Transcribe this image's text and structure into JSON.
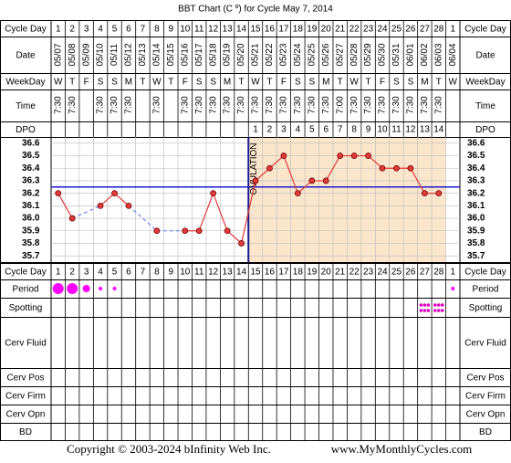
{
  "title": "BBT Chart (C º) for Cycle May 7, 2014",
  "row_labels": {
    "cycle_day": "Cycle Day",
    "date": "Date",
    "weekday": "WeekDay",
    "time": "Time",
    "dpo": "DPO",
    "period": "Period",
    "spotting": "Spotting",
    "cerv_fluid": "Cerv Fluid",
    "cerv_pos": "Cerv Pos",
    "cerv_firm": "Cerv Firm",
    "cerv_opn": "Cerv Opn",
    "bd": "BD"
  },
  "chart_data": {
    "type": "line",
    "categories": [
      1,
      2,
      3,
      4,
      5,
      6,
      7,
      8,
      9,
      10,
      11,
      12,
      13,
      14,
      15,
      16,
      17,
      18,
      19,
      20,
      21,
      22,
      23,
      24,
      25,
      26,
      27,
      28,
      1
    ],
    "dates": [
      "05/07",
      "05/08",
      "05/09",
      "05/10",
      "05/11",
      "05/12",
      "05/13",
      "05/14",
      "05/15",
      "05/16",
      "05/17",
      "05/18",
      "05/19",
      "05/20",
      "05/21",
      "05/22",
      "05/23",
      "05/24",
      "05/25",
      "05/26",
      "05/27",
      "05/28",
      "05/29",
      "05/30",
      "05/31",
      "06/01",
      "06/02",
      "06/03",
      "06/04"
    ],
    "weekdays": [
      "W",
      "T",
      "F",
      "S",
      "S",
      "M",
      "T",
      "W",
      "T",
      "F",
      "S",
      "S",
      "M",
      "T",
      "W",
      "T",
      "F",
      "S",
      "S",
      "M",
      "T",
      "W",
      "T",
      "F",
      "S",
      "S",
      "M",
      "T",
      "W"
    ],
    "times": [
      "7:30",
      "7:30",
      null,
      "7:30",
      "7:30",
      "7:30",
      null,
      "7:30",
      null,
      "7:30",
      "7:30",
      "7:30",
      "7:30",
      "7:30",
      "7:30",
      "7:30",
      "7:30",
      "7:30",
      "7:30",
      "7:30",
      "7:00",
      "7:30",
      "7:30",
      "7:30",
      "7:30",
      "7:30",
      "7:30",
      "7:30",
      null
    ],
    "dpo": [
      null,
      null,
      null,
      null,
      null,
      null,
      null,
      null,
      null,
      null,
      null,
      null,
      null,
      null,
      1,
      2,
      3,
      4,
      5,
      6,
      7,
      8,
      9,
      10,
      11,
      12,
      13,
      14,
      null
    ],
    "values": [
      36.2,
      36.0,
      null,
      36.1,
      36.2,
      36.1,
      null,
      35.9,
      null,
      35.9,
      35.9,
      36.2,
      35.9,
      35.8,
      36.3,
      36.4,
      36.5,
      36.2,
      36.3,
      36.3,
      36.5,
      36.5,
      36.5,
      36.4,
      36.4,
      36.4,
      36.2,
      36.2,
      null
    ],
    "color": "#e03a3a",
    "coverline": 36.25,
    "ovulation_label": "OVULATION",
    "ylim": [
      35.65,
      36.65
    ],
    "yticks": [
      36.6,
      36.5,
      36.4,
      36.3,
      36.2,
      36.1,
      {
        "value": 36.0,
        "label": "36.0"
      },
      35.9,
      35.8,
      35.7
    ],
    "grid": true
  },
  "period": [
    3,
    3,
    2,
    1,
    1,
    null,
    null,
    null,
    null,
    null,
    null,
    null,
    null,
    null,
    null,
    null,
    null,
    null,
    null,
    null,
    null,
    null,
    null,
    null,
    null,
    null,
    null,
    null,
    1
  ],
  "spotting": [
    null,
    null,
    null,
    null,
    null,
    null,
    null,
    null,
    null,
    null,
    null,
    null,
    null,
    null,
    null,
    null,
    null,
    null,
    null,
    null,
    null,
    null,
    null,
    null,
    null,
    null,
    1,
    1,
    null
  ],
  "footer": {
    "copyright": "Copyright © 2003-2024 bInfinity Web Inc.",
    "site": "www.MyMonthlyCycles.com"
  }
}
